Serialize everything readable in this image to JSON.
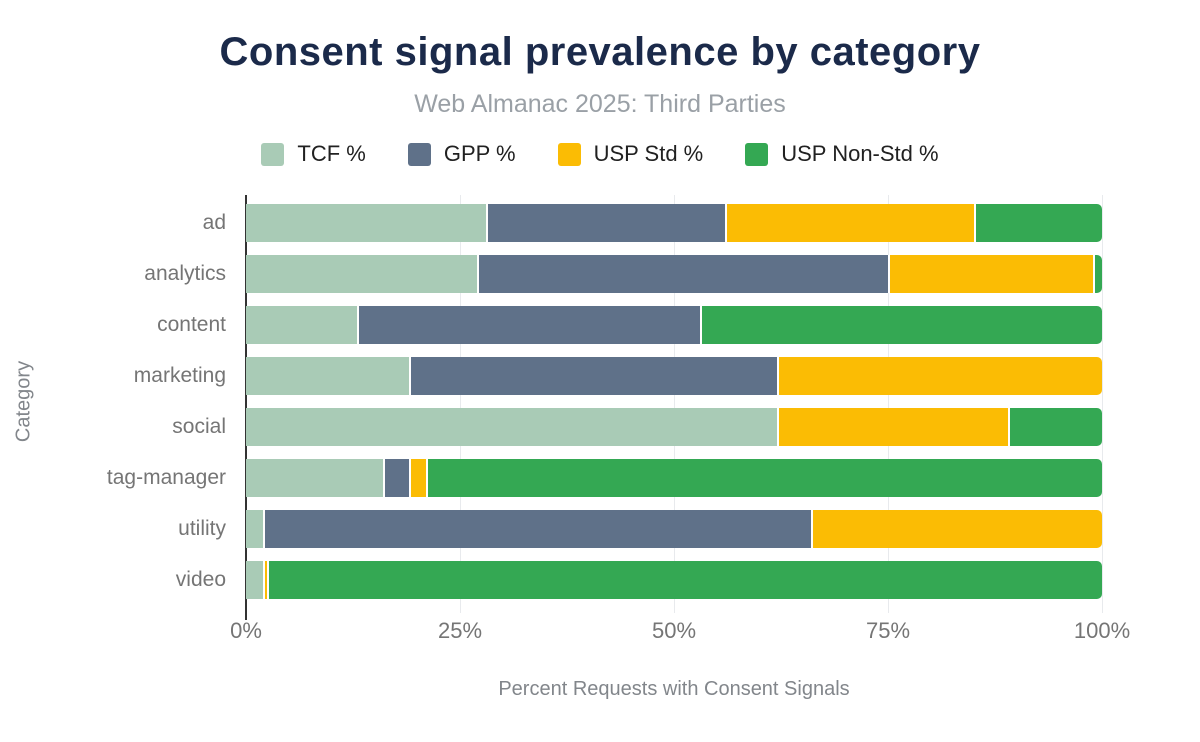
{
  "header": {
    "title": "Consent signal prevalence by category",
    "subtitle": "Web Almanac 2025: Third Parties"
  },
  "chart_data": {
    "type": "bar",
    "orientation": "horizontal",
    "stacked": true,
    "title": "Consent signal prevalence by category",
    "subtitle": "Web Almanac 2025: Third Parties",
    "xlabel": "Percent Requests with Consent Signals",
    "ylabel": "Category",
    "xlim": [
      0,
      100
    ],
    "xtick_labels": [
      "0%",
      "25%",
      "50%",
      "75%",
      "100%"
    ],
    "xtick_values": [
      0,
      25,
      50,
      75,
      100
    ],
    "grid": true,
    "legend_position": "top",
    "categories": [
      "ad",
      "analytics",
      "content",
      "marketing",
      "social",
      "tag-manager",
      "utility",
      "video"
    ],
    "series": [
      {
        "name": "TCF %",
        "color": "#a9cbb6",
        "values": [
          28,
          27,
          13,
          19,
          62,
          16,
          2,
          2
        ]
      },
      {
        "name": "GPP %",
        "color": "#5f7189",
        "values": [
          28,
          48,
          40,
          43,
          0,
          3,
          64,
          0
        ]
      },
      {
        "name": "USP Std %",
        "color": "#fbbc04",
        "values": [
          29,
          24,
          0,
          38,
          27,
          2,
          34,
          0.5
        ]
      },
      {
        "name": "USP Non-Std %",
        "color": "#34a853",
        "values": [
          15,
          1,
          47,
          0,
          11,
          79,
          0,
          97.5
        ]
      }
    ]
  },
  "colors": {
    "title_text": "#1b2a4a",
    "subtitle_text": "#9aa0a6",
    "axis_text": "#757575",
    "legend_text": "#212121",
    "gridline": "#e8eaed",
    "axis_line": "#333333",
    "background": "#ffffff"
  }
}
